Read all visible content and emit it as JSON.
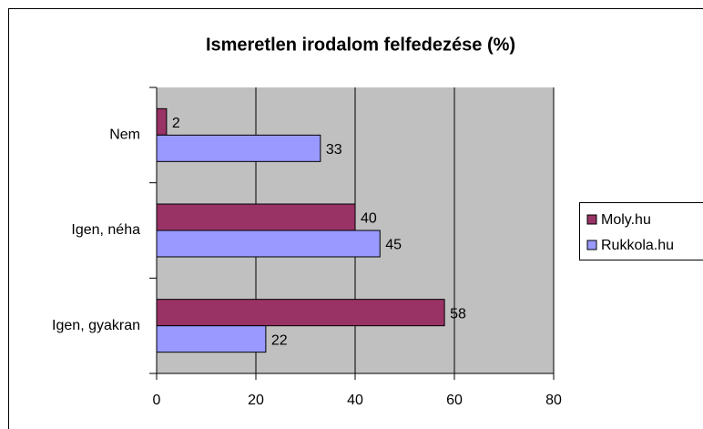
{
  "chart_data": {
    "type": "bar",
    "orientation": "horizontal",
    "title": "Ismeretlen irodalom felfedezése (%)",
    "categories": [
      "Nem",
      "Igen, néha",
      "Igen, gyakran"
    ],
    "series": [
      {
        "name": "Moly.hu",
        "color": "#993366",
        "values": [
          2,
          40,
          58
        ]
      },
      {
        "name": "Rukkola.hu",
        "color": "#9999ff",
        "values": [
          33,
          45,
          22
        ]
      }
    ],
    "xlim": [
      0,
      80
    ],
    "xticks": [
      0,
      20,
      40,
      60,
      80
    ],
    "grid": true,
    "legend": "right"
  }
}
